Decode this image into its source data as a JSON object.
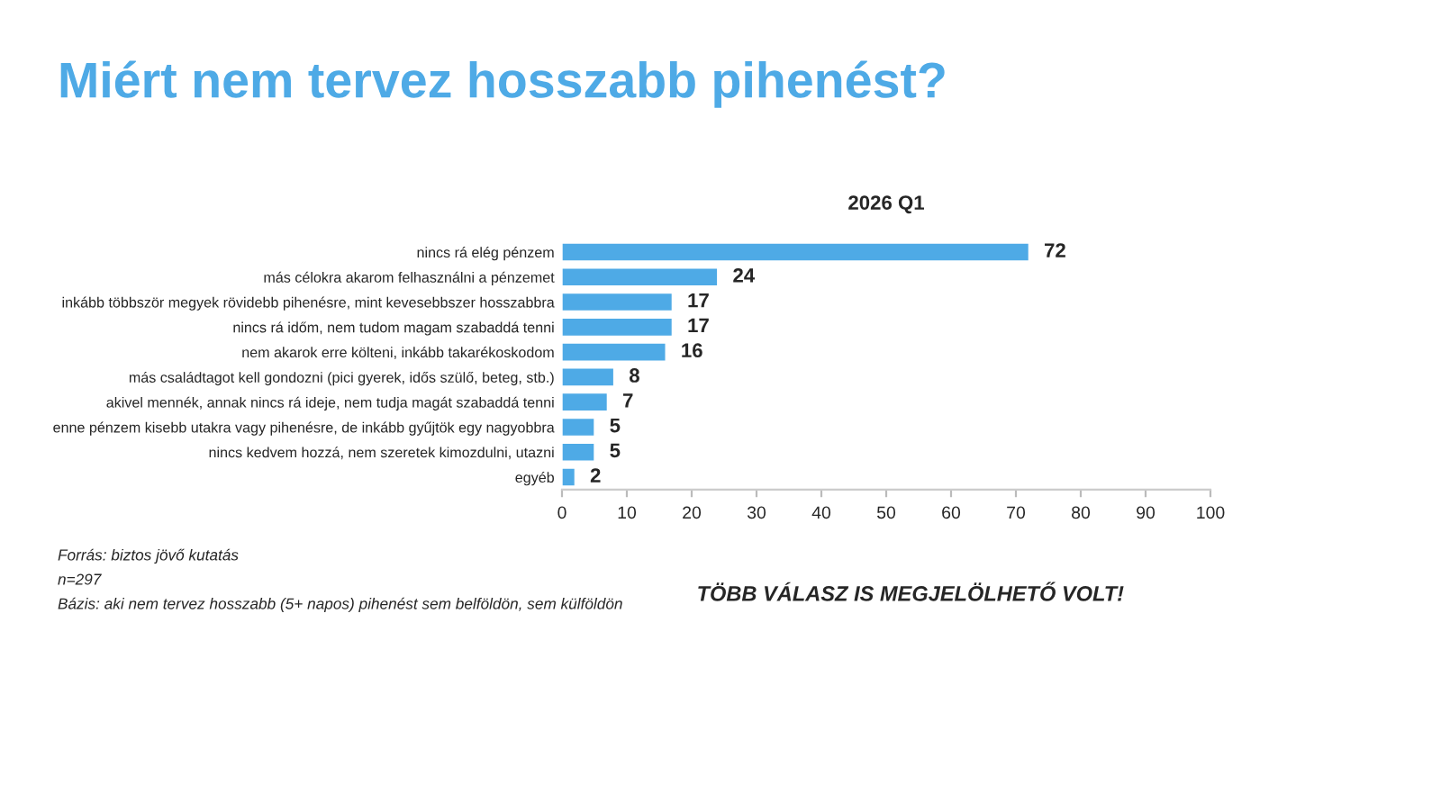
{
  "chart_data": {
    "type": "bar",
    "orientation": "horizontal",
    "title": "Miért nem tervez hosszabb pihenést?",
    "subtitle": "2026 Q1",
    "categories": [
      "nincs rá elég pénzem",
      "más célokra akarom felhasználni a pénzemet",
      "inkább többször megyek rövidebb pihenésre, mint kevesebbszer hosszabbra",
      "nincs rá időm, nem tudom magam szabaddá tenni",
      "nem akarok erre költeni, inkább takarékoskodom",
      "más családtagot kell gondozni (pici gyerek, idős szülő, beteg, stb.)",
      "akivel mennék, annak nincs rá ideje, nem tudja magát szabaddá tenni",
      "enne pénzem kisebb utakra vagy pihenésre, de inkább gyűjtök egy nagyobbra",
      "nincs kedvem hozzá, nem szeretek kimozdulni, utazni",
      "egyéb"
    ],
    "values": [
      72,
      24,
      17,
      17,
      16,
      8,
      7,
      5,
      5,
      2
    ],
    "color": "#4eaae6",
    "data_labels": true,
    "xlim": [
      0,
      100
    ],
    "xticks": [
      0,
      10,
      20,
      30,
      40,
      50,
      60,
      70,
      80,
      90,
      100
    ],
    "grid": false,
    "legend": false,
    "annotations": [
      "Forrás: biztos jövő kutatás",
      "n=297",
      "Bázis: aki nem tervez hosszabb (5+ napos) pihenést sem belföldön, sem külföldön",
      "TÖBB VÁLASZ IS MEGJELÖLHETŐ VOLT!"
    ]
  }
}
